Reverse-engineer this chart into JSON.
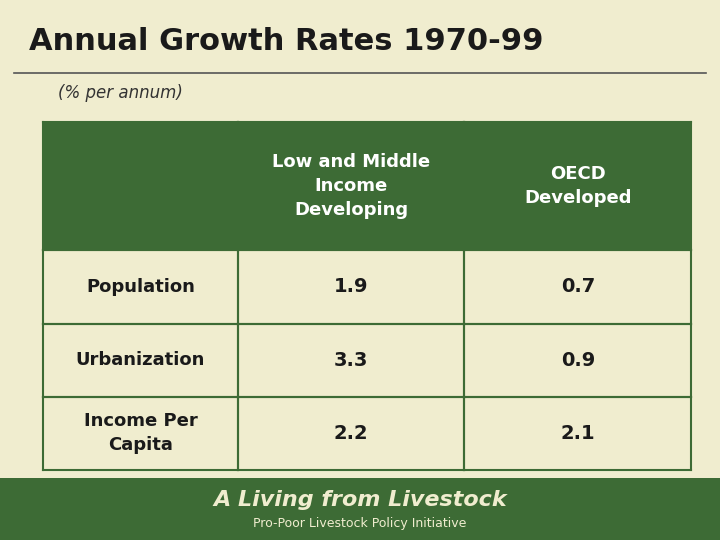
{
  "title": "Annual Growth Rates 1970-99",
  "subtitle": "(% per annum)",
  "bg_color": "#f0edcf",
  "header_bg": "#3d6b35",
  "header_text_color": "#ffffff",
  "cell_bg": "#f0edcf",
  "border_color": "#3d6b35",
  "title_color": "#1a1a1a",
  "subtitle_color": "#333333",
  "footer_bg": "#3d6b35",
  "col_headers": [
    "Low and Middle\nIncome\nDeveloping",
    "OECD\nDeveloped"
  ],
  "row_labels": [
    "Population",
    "Urbanization",
    "Income Per\nCapita"
  ],
  "data": [
    [
      "1.9",
      "0.7"
    ],
    [
      "3.3",
      "0.9"
    ],
    [
      "2.2",
      "2.1"
    ]
  ],
  "footer_text1": "A Living from Livestock",
  "footer_text2": "Pro-Poor Livestock Policy Initiative"
}
